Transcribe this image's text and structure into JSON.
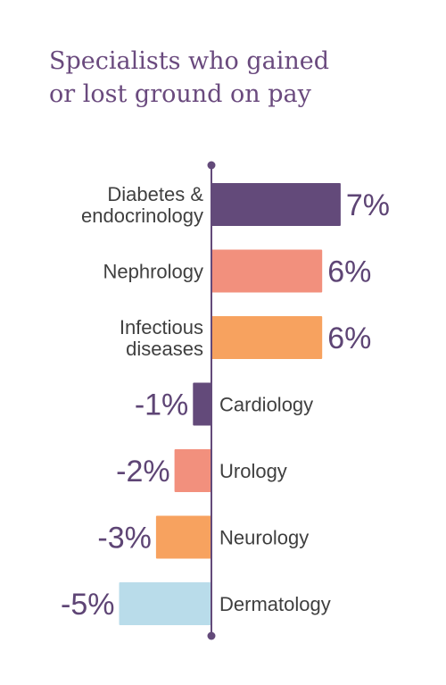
{
  "title_lines": [
    "Specialists who gained",
    "or lost ground on pay"
  ],
  "chart_data": {
    "type": "bar",
    "orientation": "horizontal",
    "title": "Specialists who gained or lost ground on pay",
    "categories": [
      "Diabetes & endocrinology",
      "Nephrology",
      "Infectious diseases",
      "Cardiology",
      "Urology",
      "Neurology",
      "Dermatology"
    ],
    "category_label_lines": [
      [
        "Diabetes &",
        "endocrinology"
      ],
      [
        "Nephrology"
      ],
      [
        "Infectious",
        "diseases"
      ],
      [
        "Cardiology"
      ],
      [
        "Urology"
      ],
      [
        "Neurology"
      ],
      [
        "Dermatology"
      ]
    ],
    "values": [
      7,
      6,
      6,
      -1,
      -2,
      -3,
      -5
    ],
    "value_labels": [
      "7%",
      "6%",
      "6%",
      "-1%",
      "-2%",
      "-3%",
      "-5%"
    ],
    "bar_colors": [
      "#634a7a",
      "#f2907d",
      "#f7a25f",
      "#634a7a",
      "#f2907d",
      "#f7a25f",
      "#b9dcea"
    ],
    "axis_color": "#634a7a",
    "xlim": [
      -5,
      7
    ],
    "grid": false,
    "legend": "none"
  }
}
